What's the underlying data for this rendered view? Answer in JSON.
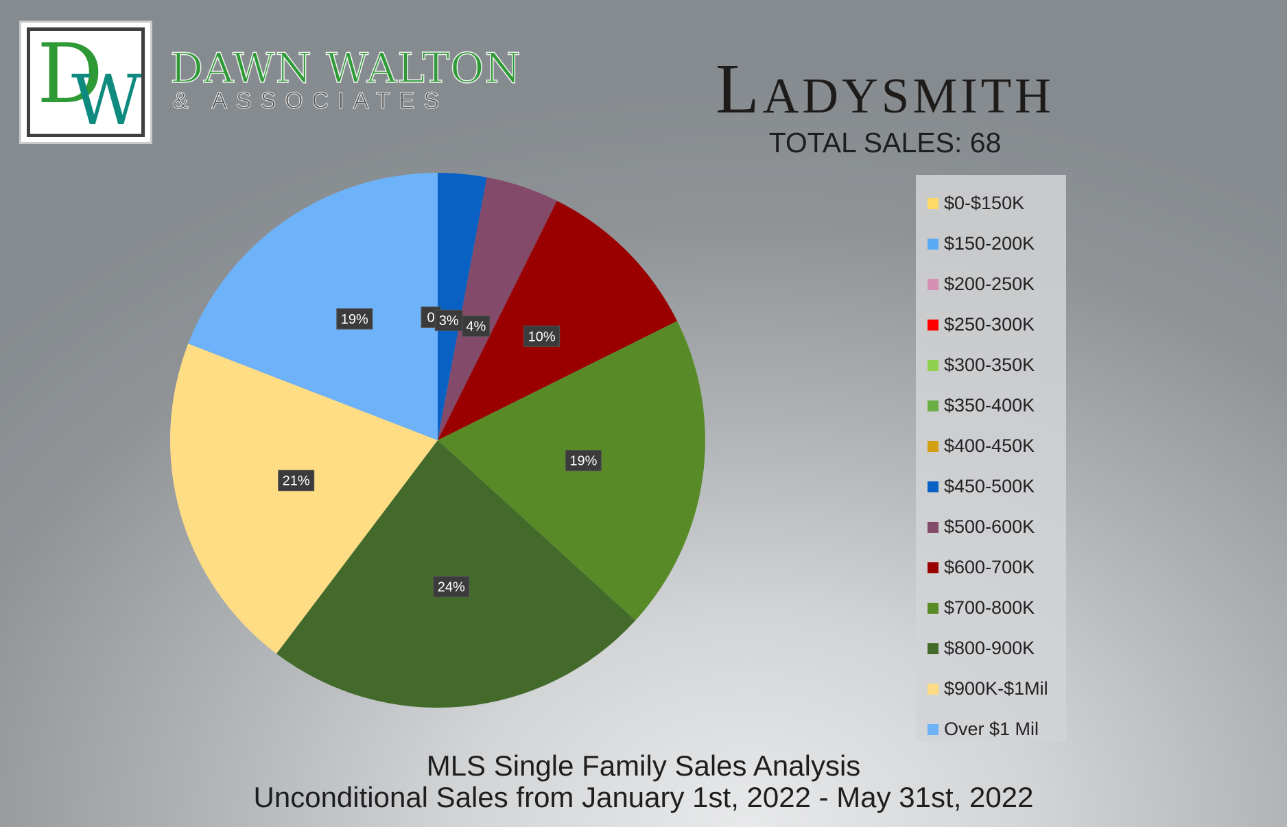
{
  "brand": {
    "logo_text": "DW",
    "name": "DAWN WALTON",
    "subtitle": "& ASSOCIATES"
  },
  "header": {
    "city": "Ladysmith",
    "total_sales": "TOTAL SALES: 68"
  },
  "footer": {
    "line1": "MLS Single Family Sales Analysis",
    "line2": "Unconditional Sales from January 1st, 2022 - May 31st, 2022"
  },
  "chart_data": {
    "type": "pie",
    "title": "",
    "total": 68,
    "legend_position": "right",
    "slices": [
      {
        "label": "$0-$150K",
        "value": 0,
        "pct_label": "",
        "color": "#ffd966"
      },
      {
        "label": "$150-200K",
        "value": 0,
        "pct_label": "",
        "color": "#5aaaf5"
      },
      {
        "label": "$200-250K",
        "value": 0,
        "pct_label": "",
        "color": "#d58fb2"
      },
      {
        "label": "$250-300K",
        "value": 0,
        "pct_label": "",
        "color": "#ff0000"
      },
      {
        "label": "$300-350K",
        "value": 0,
        "pct_label": "",
        "color": "#8fd14f"
      },
      {
        "label": "$350-400K",
        "value": 0,
        "pct_label": "",
        "color": "#6aad45"
      },
      {
        "label": "$400-450K",
        "value": 0,
        "pct_label": "0",
        "color": "#d4a013"
      },
      {
        "label": "$450-500K",
        "value": 2,
        "pct_label": "3%",
        "color": "#0a61c4"
      },
      {
        "label": "$500-600K",
        "value": 3,
        "pct_label": "4%",
        "color": "#844a6a"
      },
      {
        "label": "$600-700K",
        "value": 7,
        "pct_label": "10%",
        "color": "#9b0000"
      },
      {
        "label": "$700-800K",
        "value": 13,
        "pct_label": "19%",
        "color": "#588a27"
      },
      {
        "label": "$800-900K",
        "value": 16,
        "pct_label": "24%",
        "color": "#436a2b"
      },
      {
        "label": "$900K-$1Mil",
        "value": 14,
        "pct_label": "21%",
        "color": "#ffdd85"
      },
      {
        "label": "Over $1 Mil",
        "value": 13,
        "pct_label": "19%",
        "color": "#6eb3fa"
      }
    ]
  }
}
